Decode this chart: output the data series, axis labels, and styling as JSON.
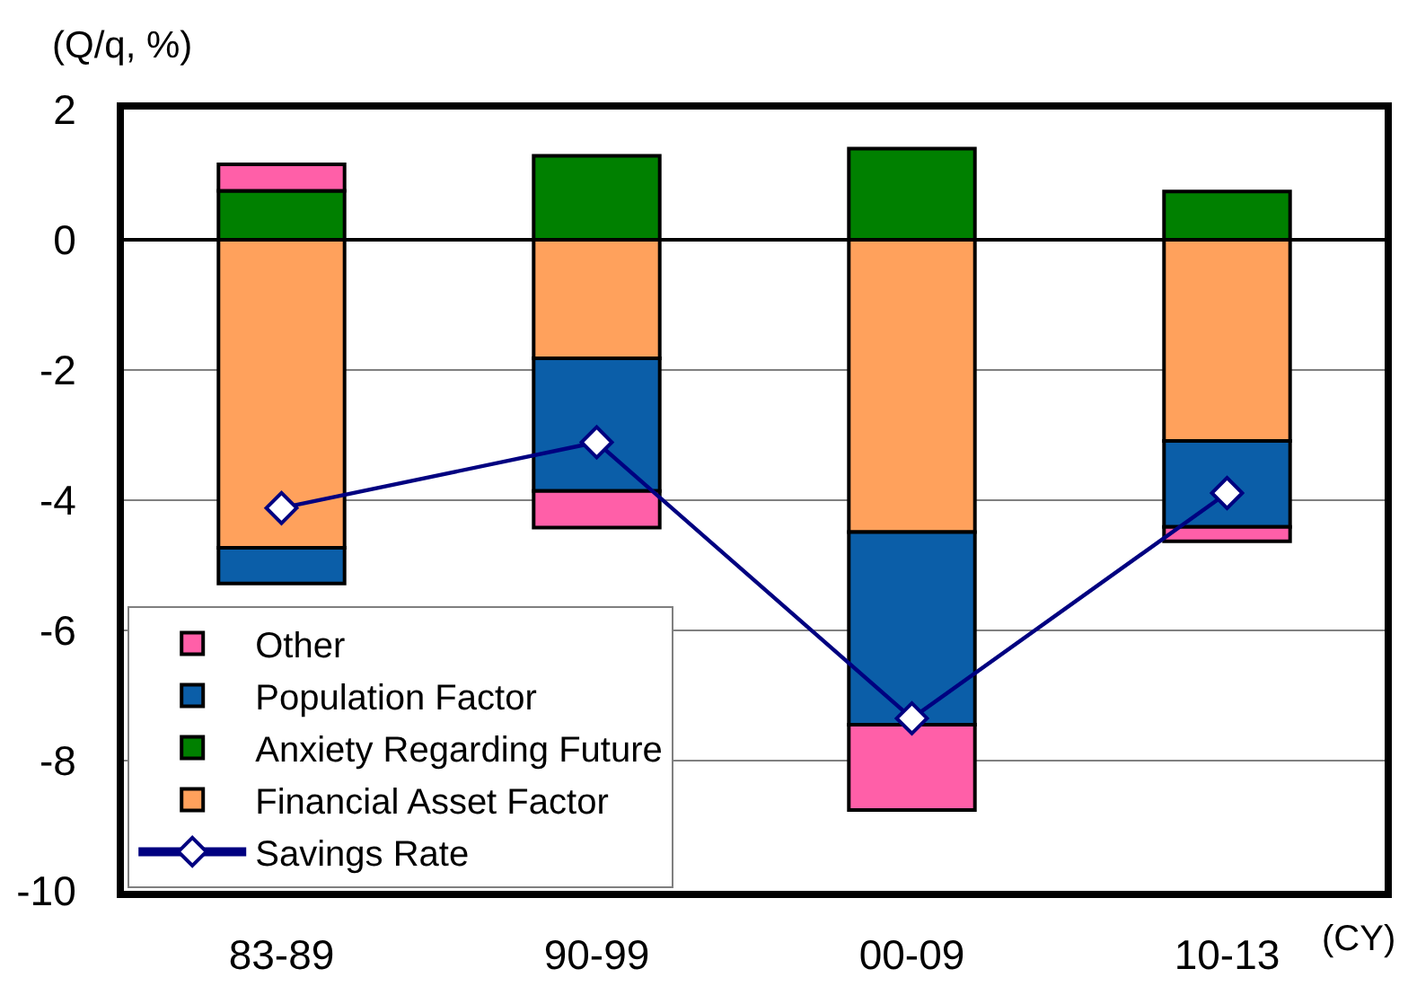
{
  "chart_data": {
    "type": "bar",
    "ylabel": "(Q/q, %)",
    "xlabel": "(CY)",
    "categories": [
      "83-89",
      "90-99",
      "00-09",
      "10-13"
    ],
    "stacked": true,
    "series": [
      {
        "name": "Financial Asset Factor",
        "color": "#ffa15c",
        "values": [
          -4.73,
          -1.82,
          -4.49,
          -3.09
        ]
      },
      {
        "name": "Anxiety Regarding Future",
        "color": "#008000",
        "values": [
          0.75,
          1.29,
          1.4,
          0.74
        ]
      },
      {
        "name": "Population Factor",
        "color": "#0b5ea8",
        "values": [
          -0.55,
          -2.04,
          -2.96,
          -1.32
        ]
      },
      {
        "name": "Other",
        "color": "#ff5fa8",
        "values": [
          0.41,
          -0.56,
          -1.31,
          -0.22
        ]
      },
      {
        "name": "Savings Rate",
        "type": "line",
        "color": "#000080",
        "marker": "diamond",
        "values": [
          -4.12,
          -3.11,
          -7.35,
          -3.89
        ]
      }
    ],
    "ylim": [
      -10,
      2
    ],
    "yticks": [
      -10,
      -8,
      -6,
      -4,
      -2,
      0,
      2
    ],
    "grid": "y",
    "legend": "bottom left"
  }
}
